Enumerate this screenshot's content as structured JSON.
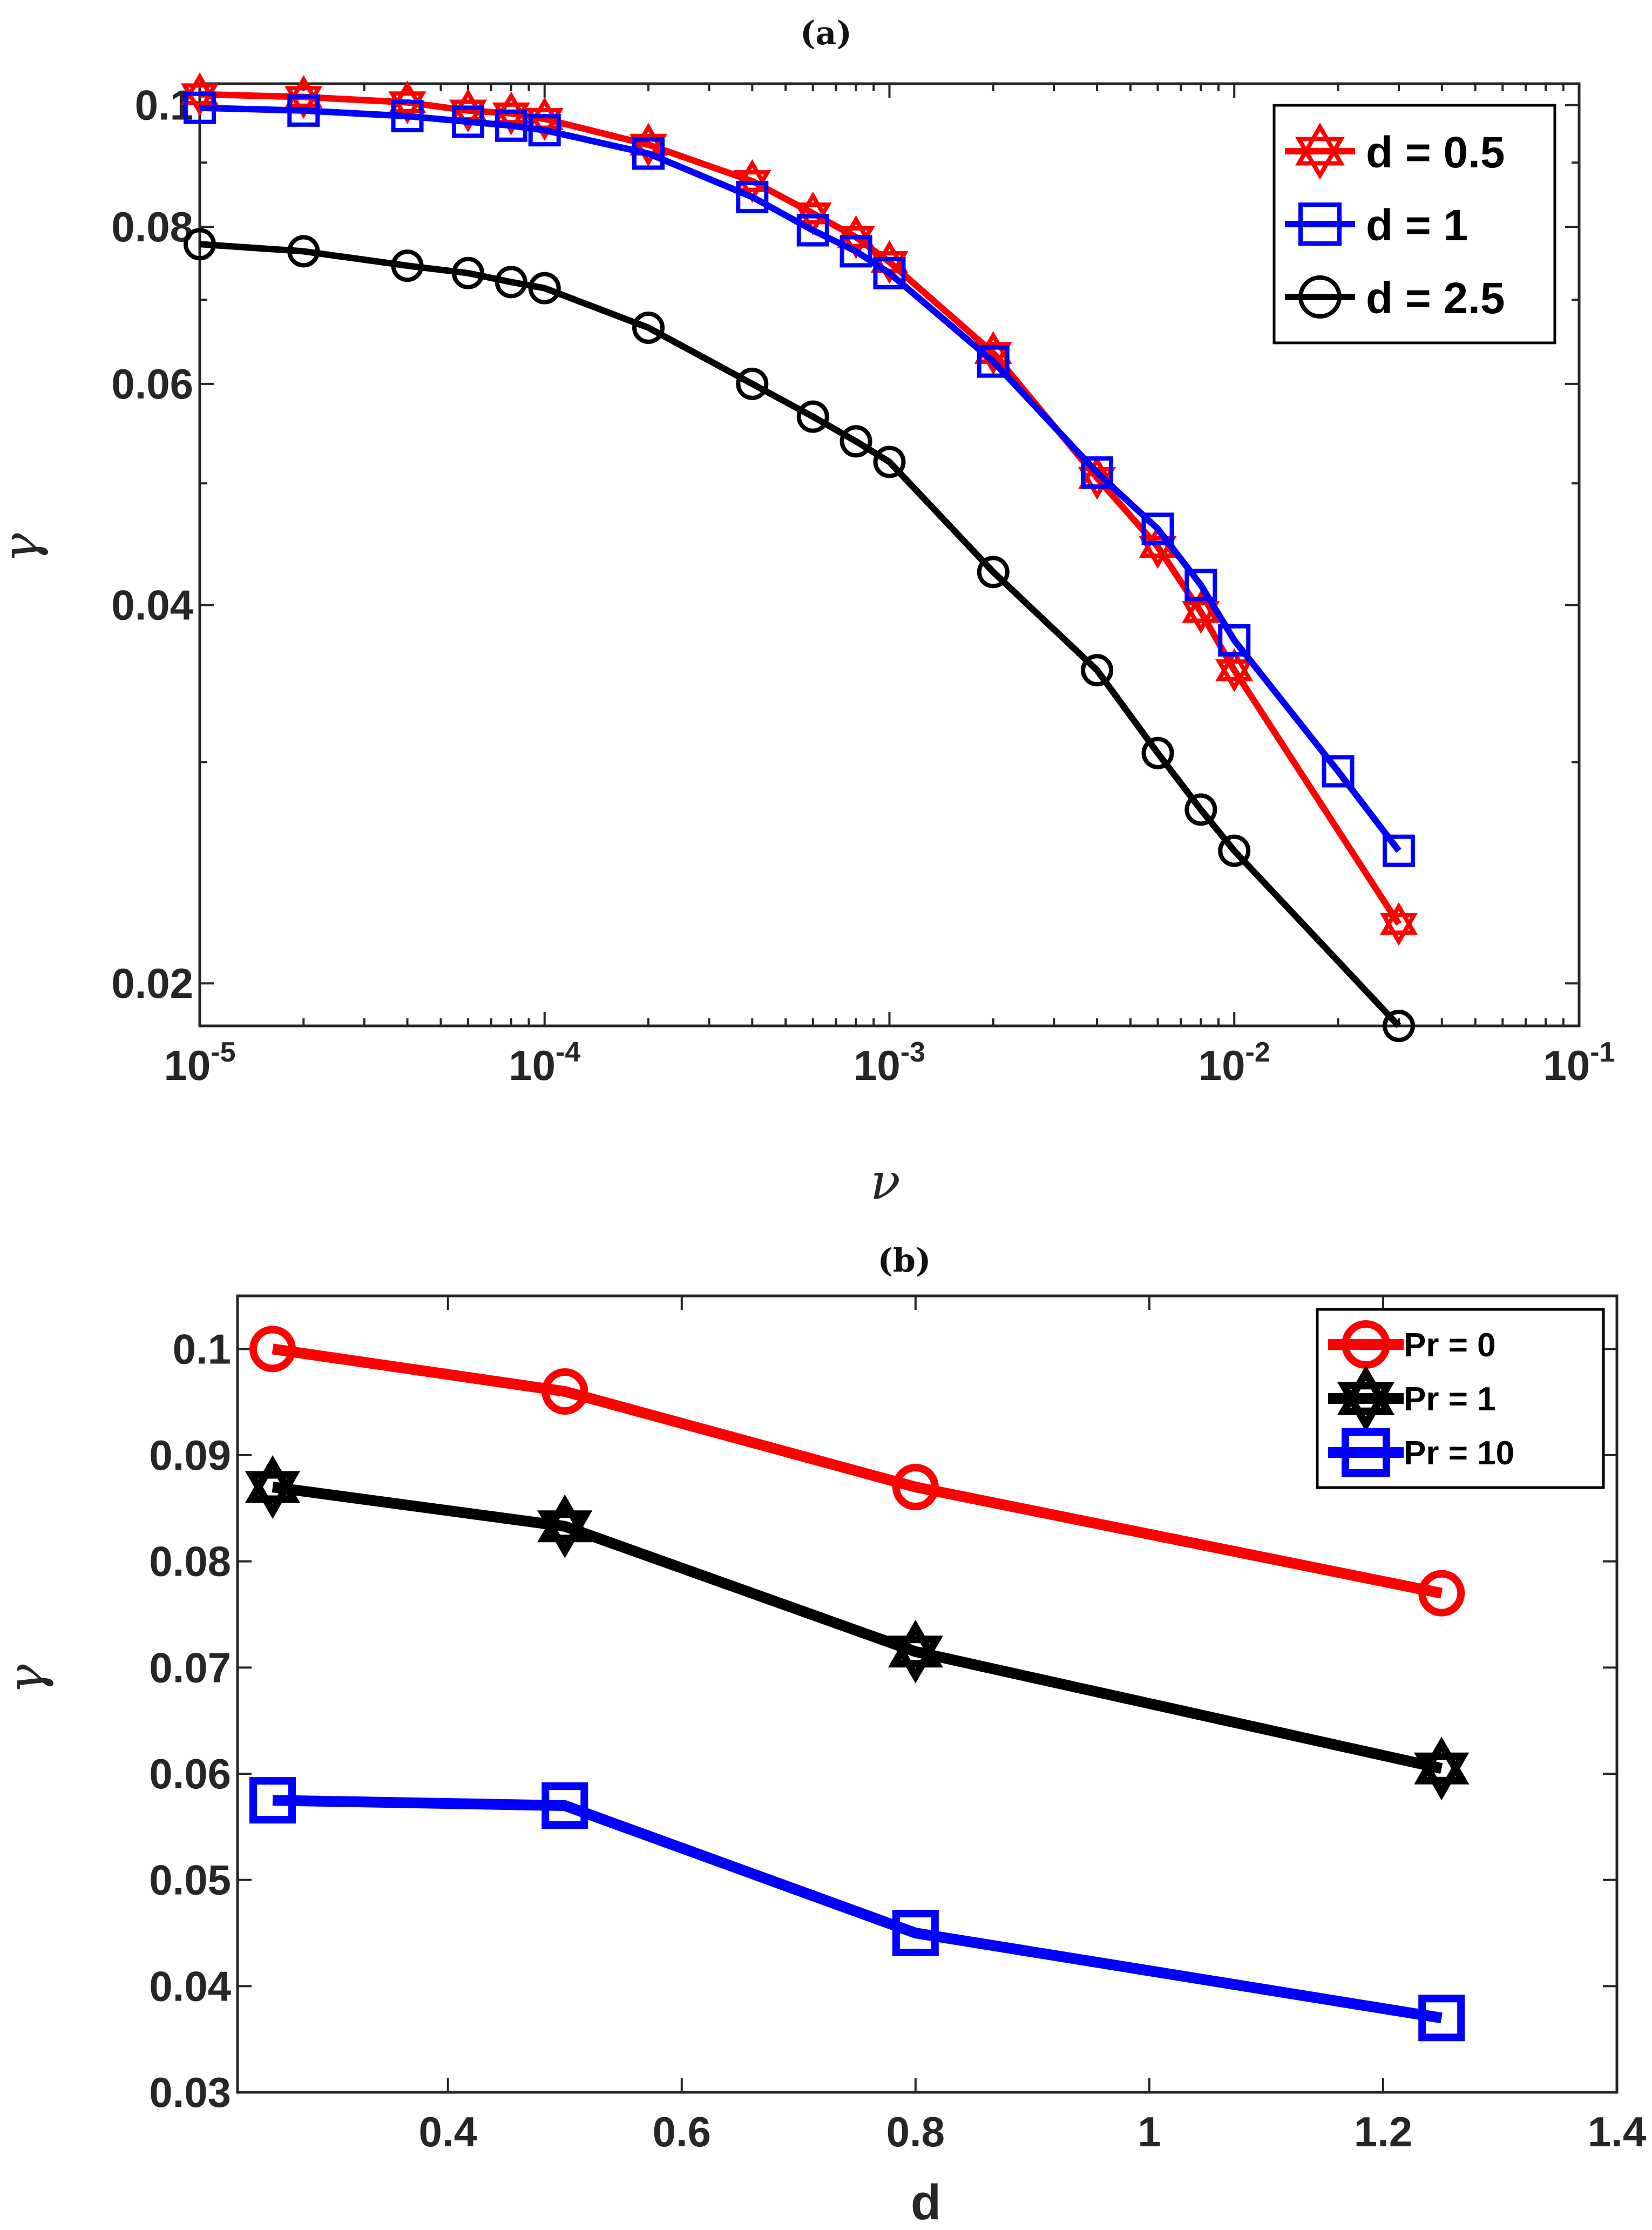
{
  "chart_data": [
    {
      "panel": "(a)",
      "type": "line",
      "x_scale": "log",
      "y_scale": "log",
      "xlabel": "ν",
      "ylabel": "γ",
      "xlim": [
        1e-05,
        0.1
      ],
      "ylim": [
        0.0185,
        0.104
      ],
      "x_ticks": [
        {
          "value": 1e-05,
          "base": "10",
          "exp": "-5"
        },
        {
          "value": 0.0001,
          "base": "10",
          "exp": "-4"
        },
        {
          "value": 0.001,
          "base": "10",
          "exp": "-3"
        },
        {
          "value": 0.01,
          "base": "10",
          "exp": "-2"
        },
        {
          "value": 0.1,
          "base": "10",
          "exp": "-1"
        }
      ],
      "y_ticks": [
        {
          "value": 0.02,
          "label": "0.02"
        },
        {
          "value": 0.04,
          "label": "0.04"
        },
        {
          "value": 0.06,
          "label": "0.06"
        },
        {
          "value": 0.08,
          "label": "0.08"
        },
        {
          "value": 0.1,
          "label": "0.1"
        }
      ],
      "legend_position": "top-right",
      "series": [
        {
          "name": "d = 0.5",
          "color": "#ff0000",
          "marker": "hexagram",
          "x": [
            1e-05,
            2e-05,
            4e-05,
            6e-05,
            8e-05,
            0.0001,
            0.0002,
            0.0004,
            0.0006,
            0.0008,
            0.001,
            0.002,
            0.004,
            0.006,
            0.008,
            0.01,
            0.03
          ],
          "y": [
            0.102,
            0.1015,
            0.1005,
            0.099,
            0.0985,
            0.0975,
            0.093,
            0.087,
            0.082,
            0.0785,
            0.075,
            0.0635,
            0.0505,
            0.0445,
            0.0395,
            0.0355,
            0.0223
          ]
        },
        {
          "name": "d = 1",
          "color": "#0000ff",
          "marker": "square",
          "x": [
            1e-05,
            2e-05,
            4e-05,
            6e-05,
            8e-05,
            0.0001,
            0.0002,
            0.0004,
            0.0006,
            0.0008,
            0.001,
            0.002,
            0.004,
            0.006,
            0.008,
            0.01,
            0.02,
            0.03
          ],
          "y": [
            0.0995,
            0.099,
            0.098,
            0.097,
            0.0963,
            0.0955,
            0.0915,
            0.0845,
            0.0795,
            0.0765,
            0.0735,
            0.0625,
            0.051,
            0.046,
            0.0415,
            0.0375,
            0.0295,
            0.0255
          ]
        },
        {
          "name": "d = 2.5",
          "color": "#000000",
          "marker": "circle",
          "x": [
            1e-05,
            2e-05,
            4e-05,
            6e-05,
            8e-05,
            0.0001,
            0.0002,
            0.0004,
            0.0006,
            0.0008,
            0.001,
            0.002,
            0.004,
            0.006,
            0.008,
            0.01,
            0.03
          ],
          "y": [
            0.0775,
            0.0765,
            0.0745,
            0.0735,
            0.0723,
            0.0715,
            0.0665,
            0.06,
            0.0565,
            0.054,
            0.052,
            0.0425,
            0.0355,
            0.0305,
            0.0275,
            0.0255,
            0.0185
          ]
        }
      ]
    },
    {
      "panel": "(b)",
      "type": "line",
      "x_scale": "linear",
      "y_scale": "linear",
      "xlabel": "d",
      "ylabel": "γ",
      "xlim": [
        0.22,
        1.4
      ],
      "ylim": [
        0.03,
        0.105
      ],
      "x_ticks": [
        {
          "value": 0.4,
          "label": "0.4"
        },
        {
          "value": 0.6,
          "label": "0.6"
        },
        {
          "value": 0.8,
          "label": "0.8"
        },
        {
          "value": 1.0,
          "label": "1"
        },
        {
          "value": 1.2,
          "label": "1.2"
        },
        {
          "value": 1.4,
          "label": "1.4"
        }
      ],
      "y_ticks": [
        {
          "value": 0.03,
          "label": "0.03"
        },
        {
          "value": 0.04,
          "label": "0.04"
        },
        {
          "value": 0.05,
          "label": "0.05"
        },
        {
          "value": 0.06,
          "label": "0.06"
        },
        {
          "value": 0.07,
          "label": "0.07"
        },
        {
          "value": 0.08,
          "label": "0.08"
        },
        {
          "value": 0.09,
          "label": "0.09"
        },
        {
          "value": 0.1,
          "label": "0.1"
        }
      ],
      "legend_position": "top-right",
      "series": [
        {
          "name": "Pr = 0",
          "color": "#ff0000",
          "marker": "circle",
          "x": [
            0.25,
            0.5,
            0.8,
            1.25
          ],
          "y": [
            0.1,
            0.096,
            0.087,
            0.077
          ]
        },
        {
          "name": "Pr = 1",
          "color": "#000000",
          "marker": "hexagram",
          "x": [
            0.25,
            0.5,
            0.8,
            1.25
          ],
          "y": [
            0.087,
            0.0833,
            0.0715,
            0.0605
          ]
        },
        {
          "name": "Pr = 10",
          "color": "#0000ff",
          "marker": "square",
          "x": [
            0.25,
            0.5,
            0.8,
            1.25
          ],
          "y": [
            0.0575,
            0.057,
            0.045,
            0.037
          ]
        }
      ]
    }
  ]
}
